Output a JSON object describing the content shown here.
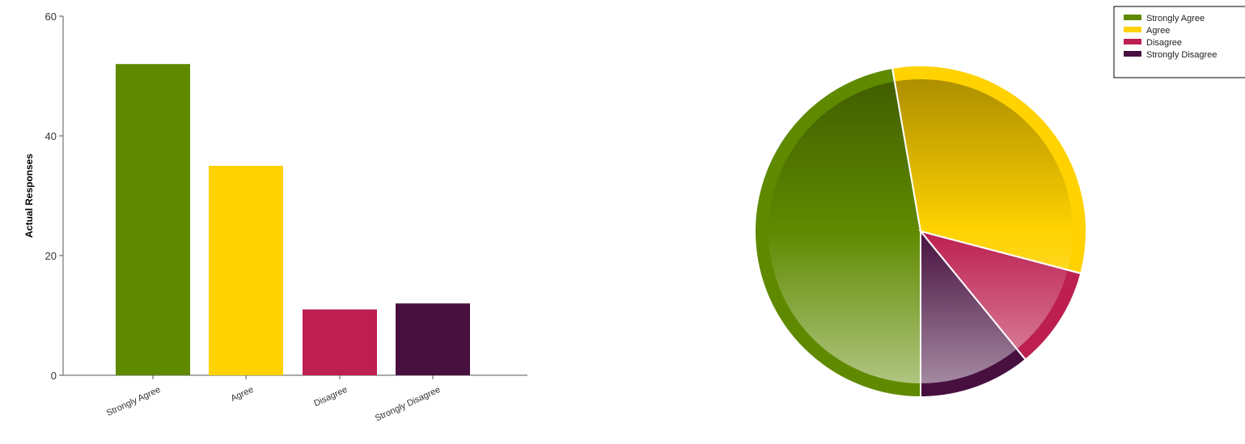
{
  "chart_data": [
    {
      "type": "bar",
      "categories": [
        "Strongly Agree",
        "Agree",
        "Disagree",
        "Strongly Disagree"
      ],
      "values": [
        52,
        35,
        11,
        12
      ],
      "colors": [
        "#5f8a00",
        "#ffd200",
        "#bc1f50",
        "#47103f"
      ],
      "ylabel": "Actual Responses",
      "ylim": [
        0,
        60
      ],
      "yticks": [
        0,
        20,
        40,
        60
      ],
      "grid": false
    },
    {
      "type": "pie",
      "labels": [
        "Strongly Agree",
        "Agree",
        "Disagree",
        "Strongly Disagree"
      ],
      "values": [
        52,
        35,
        11,
        12
      ],
      "colors": [
        "#5f8a00",
        "#ffd200",
        "#bc1f50",
        "#47103f"
      ],
      "legend": {
        "position": "top-right",
        "entries": [
          "Strongly Agree",
          "Agree",
          "Disagree",
          "Strongly Disagree"
        ]
      }
    }
  ]
}
